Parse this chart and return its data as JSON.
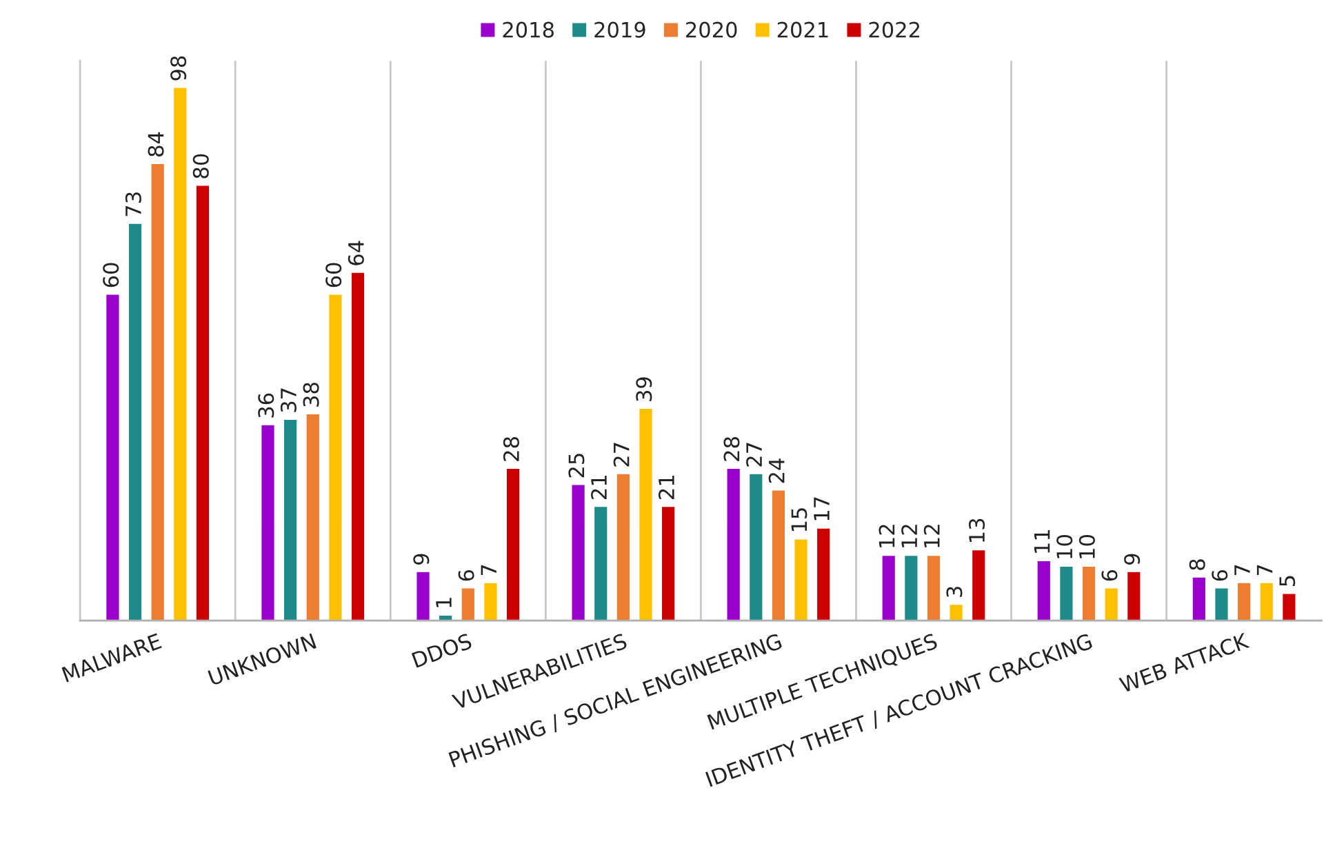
{
  "chart_data": {
    "type": "bar",
    "categories": [
      "MALWARE",
      "UNKNOWN",
      "DDOS",
      "VULNERABILITIES",
      "PHISHING / SOCIAL ENGINEERING",
      "MULTIPLE TECHNIQUES",
      "IDENTITY THEFT / ACCOUNT CRACKING",
      "WEB ATTACK"
    ],
    "series": [
      {
        "name": "2018",
        "color": "#9900cc",
        "values": [
          60,
          36,
          9,
          25,
          28,
          12,
          11,
          8
        ]
      },
      {
        "name": "2019",
        "color": "#1f8a8a",
        "values": [
          73,
          37,
          1,
          21,
          27,
          12,
          10,
          6
        ]
      },
      {
        "name": "2020",
        "color": "#ed7d31",
        "values": [
          84,
          38,
          6,
          27,
          24,
          12,
          10,
          7
        ]
      },
      {
        "name": "2021",
        "color": "#ffc000",
        "values": [
          98,
          60,
          7,
          39,
          15,
          3,
          6,
          7
        ]
      },
      {
        "name": "2022",
        "color": "#cc0000",
        "values": [
          80,
          64,
          28,
          21,
          17,
          13,
          9,
          5
        ]
      }
    ],
    "data_labels": true,
    "legend": "top",
    "grid": "x",
    "tick_labels": "x"
  }
}
